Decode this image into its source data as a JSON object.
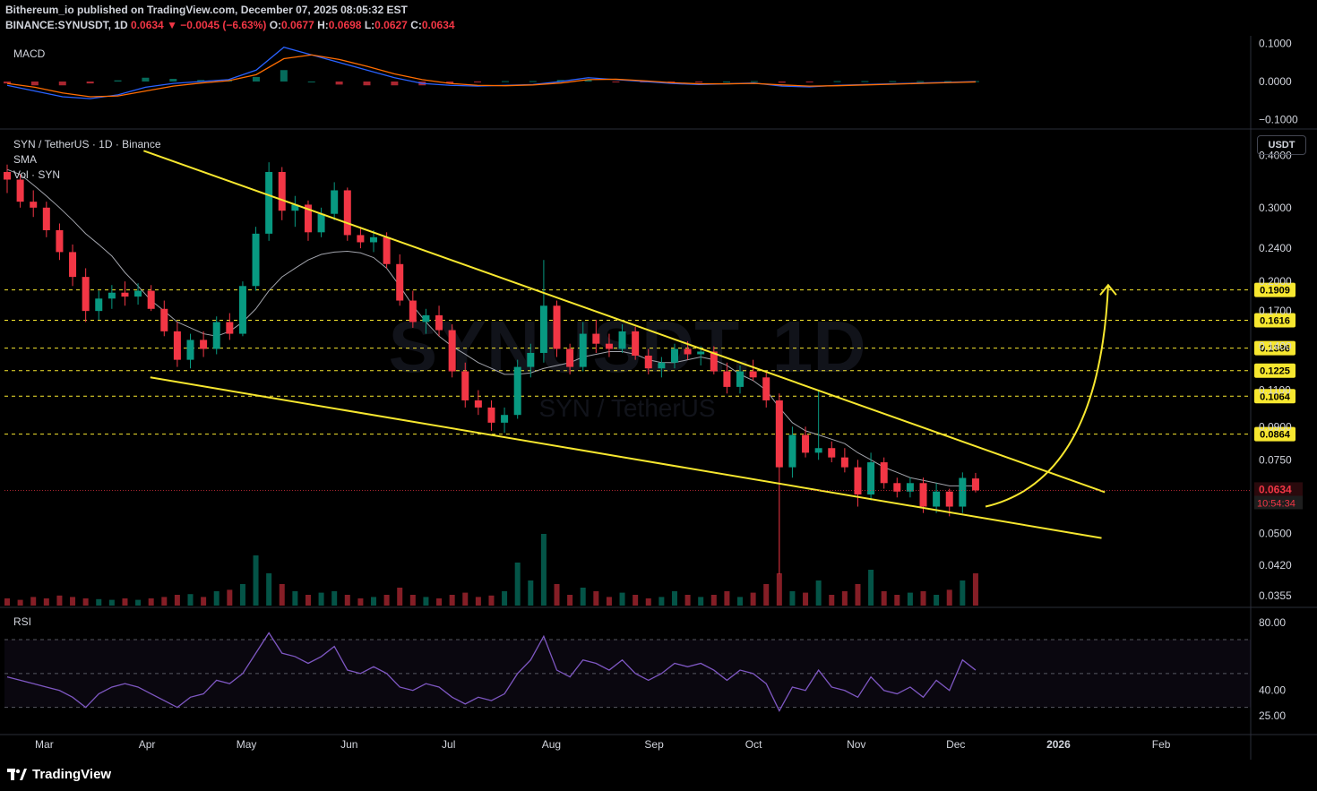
{
  "header": {
    "published_line": "Bithereum_io published on TradingView.com, December 07, 2025 08:05:32 EST",
    "symbol": "BINANCE:SYNUSDT, 1D",
    "last": "0.0634",
    "change": "▼ −0.0045 (−6.63%)",
    "open_label": "O:",
    "open": "0.0677",
    "high_label": "H:",
    "high": "0.0698",
    "low_label": "L:",
    "low": "0.0627",
    "close_label": "C:",
    "close": "0.0634"
  },
  "panes": {
    "macd_label": "MACD",
    "main_title": "SYN / TetherUS · 1D · Binance",
    "sma_label": "SMA",
    "vol_label": "Vol · SYN",
    "rsi_label": "RSI",
    "watermark_main": "SYNUSDT, 1D",
    "watermark_sub": "SYN / TetherUS"
  },
  "price_axis": {
    "currency": "USDT",
    "macd_ticks": [
      "0.1000",
      "0.0000",
      "−0.1000"
    ],
    "main_ticks": [
      "0.4000",
      "0.3000",
      "0.2400",
      "0.2000",
      "0.1700",
      "0.1400",
      "0.1100",
      "0.0900",
      "0.0750",
      "0.0500",
      "0.0420",
      "0.0355"
    ],
    "rsi_ticks": [
      "80.00",
      "40.00",
      "25.00"
    ],
    "current_price_label": "0.0634",
    "countdown": "10:54:34"
  },
  "time_axis": {
    "labels": [
      "Mar",
      "Apr",
      "May",
      "Jun",
      "Jul",
      "Aug",
      "Sep",
      "Oct",
      "Nov",
      "Dec",
      "2026",
      "Feb"
    ]
  },
  "colors": {
    "background": "#000000",
    "up": "#089981",
    "down": "#f23645",
    "sma": "#b2b5be",
    "trendline": "#f7e72f",
    "level": "#f7e72f",
    "rsi": "#7e57c2",
    "macd_line": "#2962ff",
    "signal_line": "#ff6d00",
    "grid": "#1a1d26"
  },
  "footer": {
    "brand": "TradingView"
  },
  "chart_data": {
    "type": "candlestick",
    "pair": "SYN / TetherUS",
    "timeframe": "1D",
    "exchange": "Binance",
    "y_scale": "log",
    "ylim": [
      0.0335,
      0.46
    ],
    "x_range": [
      "2025-02-17",
      "2026-02-28"
    ],
    "last_candle_date": "2025-12-07",
    "ohlc": [
      {
        "o": 0.365,
        "h": 0.38,
        "l": 0.325,
        "c": 0.35
      },
      {
        "o": 0.35,
        "h": 0.36,
        "l": 0.3,
        "c": 0.31
      },
      {
        "o": 0.31,
        "h": 0.33,
        "l": 0.285,
        "c": 0.3
      },
      {
        "o": 0.3,
        "h": 0.31,
        "l": 0.255,
        "c": 0.265
      },
      {
        "o": 0.265,
        "h": 0.275,
        "l": 0.225,
        "c": 0.235
      },
      {
        "o": 0.235,
        "h": 0.245,
        "l": 0.195,
        "c": 0.205
      },
      {
        "o": 0.205,
        "h": 0.215,
        "l": 0.16,
        "c": 0.17
      },
      {
        "o": 0.17,
        "h": 0.19,
        "l": 0.162,
        "c": 0.182
      },
      {
        "o": 0.182,
        "h": 0.196,
        "l": 0.172,
        "c": 0.188
      },
      {
        "o": 0.188,
        "h": 0.2,
        "l": 0.175,
        "c": 0.184
      },
      {
        "o": 0.184,
        "h": 0.198,
        "l": 0.176,
        "c": 0.19
      },
      {
        "o": 0.19,
        "h": 0.196,
        "l": 0.17,
        "c": 0.172
      },
      {
        "o": 0.172,
        "h": 0.18,
        "l": 0.148,
        "c": 0.152
      },
      {
        "o": 0.152,
        "h": 0.16,
        "l": 0.125,
        "c": 0.13
      },
      {
        "o": 0.13,
        "h": 0.15,
        "l": 0.124,
        "c": 0.145
      },
      {
        "o": 0.145,
        "h": 0.152,
        "l": 0.132,
        "c": 0.138
      },
      {
        "o": 0.138,
        "h": 0.165,
        "l": 0.134,
        "c": 0.16
      },
      {
        "o": 0.16,
        "h": 0.168,
        "l": 0.145,
        "c": 0.15
      },
      {
        "o": 0.15,
        "h": 0.2,
        "l": 0.148,
        "c": 0.195
      },
      {
        "o": 0.195,
        "h": 0.27,
        "l": 0.19,
        "c": 0.26
      },
      {
        "o": 0.26,
        "h": 0.385,
        "l": 0.25,
        "c": 0.365
      },
      {
        "o": 0.365,
        "h": 0.375,
        "l": 0.28,
        "c": 0.295
      },
      {
        "o": 0.295,
        "h": 0.32,
        "l": 0.27,
        "c": 0.305
      },
      {
        "o": 0.305,
        "h": 0.312,
        "l": 0.25,
        "c": 0.262
      },
      {
        "o": 0.262,
        "h": 0.3,
        "l": 0.255,
        "c": 0.29
      },
      {
        "o": 0.29,
        "h": 0.345,
        "l": 0.28,
        "c": 0.33
      },
      {
        "o": 0.33,
        "h": 0.335,
        "l": 0.25,
        "c": 0.258
      },
      {
        "o": 0.258,
        "h": 0.27,
        "l": 0.24,
        "c": 0.248
      },
      {
        "o": 0.248,
        "h": 0.265,
        "l": 0.235,
        "c": 0.255
      },
      {
        "o": 0.255,
        "h": 0.262,
        "l": 0.215,
        "c": 0.22
      },
      {
        "o": 0.22,
        "h": 0.232,
        "l": 0.175,
        "c": 0.18
      },
      {
        "o": 0.18,
        "h": 0.19,
        "l": 0.155,
        "c": 0.16
      },
      {
        "o": 0.16,
        "h": 0.172,
        "l": 0.15,
        "c": 0.166
      },
      {
        "o": 0.166,
        "h": 0.175,
        "l": 0.148,
        "c": 0.153
      },
      {
        "o": 0.153,
        "h": 0.158,
        "l": 0.118,
        "c": 0.122
      },
      {
        "o": 0.122,
        "h": 0.128,
        "l": 0.1,
        "c": 0.104
      },
      {
        "o": 0.104,
        "h": 0.11,
        "l": 0.096,
        "c": 0.1
      },
      {
        "o": 0.1,
        "h": 0.104,
        "l": 0.088,
        "c": 0.092
      },
      {
        "o": 0.092,
        "h": 0.1,
        "l": 0.087,
        "c": 0.096
      },
      {
        "o": 0.096,
        "h": 0.13,
        "l": 0.094,
        "c": 0.125
      },
      {
        "o": 0.125,
        "h": 0.142,
        "l": 0.118,
        "c": 0.135
      },
      {
        "o": 0.135,
        "h": 0.225,
        "l": 0.128,
        "c": 0.175
      },
      {
        "o": 0.175,
        "h": 0.18,
        "l": 0.132,
        "c": 0.138
      },
      {
        "o": 0.138,
        "h": 0.142,
        "l": 0.12,
        "c": 0.125
      },
      {
        "o": 0.125,
        "h": 0.16,
        "l": 0.122,
        "c": 0.15
      },
      {
        "o": 0.15,
        "h": 0.162,
        "l": 0.135,
        "c": 0.142
      },
      {
        "o": 0.142,
        "h": 0.15,
        "l": 0.132,
        "c": 0.138
      },
      {
        "o": 0.138,
        "h": 0.158,
        "l": 0.135,
        "c": 0.152
      },
      {
        "o": 0.152,
        "h": 0.156,
        "l": 0.13,
        "c": 0.133
      },
      {
        "o": 0.133,
        "h": 0.138,
        "l": 0.12,
        "c": 0.124
      },
      {
        "o": 0.124,
        "h": 0.132,
        "l": 0.118,
        "c": 0.128
      },
      {
        "o": 0.128,
        "h": 0.142,
        "l": 0.124,
        "c": 0.138
      },
      {
        "o": 0.138,
        "h": 0.144,
        "l": 0.13,
        "c": 0.134
      },
      {
        "o": 0.134,
        "h": 0.14,
        "l": 0.126,
        "c": 0.136
      },
      {
        "o": 0.136,
        "h": 0.14,
        "l": 0.12,
        "c": 0.122
      },
      {
        "o": 0.122,
        "h": 0.128,
        "l": 0.108,
        "c": 0.112
      },
      {
        "o": 0.112,
        "h": 0.126,
        "l": 0.108,
        "c": 0.122
      },
      {
        "o": 0.122,
        "h": 0.13,
        "l": 0.116,
        "c": 0.118
      },
      {
        "o": 0.118,
        "h": 0.122,
        "l": 0.1,
        "c": 0.104
      },
      {
        "o": 0.104,
        "h": 0.108,
        "l": 0.04,
        "c": 0.072
      },
      {
        "o": 0.072,
        "h": 0.09,
        "l": 0.068,
        "c": 0.086
      },
      {
        "o": 0.086,
        "h": 0.09,
        "l": 0.076,
        "c": 0.078
      },
      {
        "o": 0.078,
        "h": 0.11,
        "l": 0.075,
        "c": 0.08
      },
      {
        "o": 0.08,
        "h": 0.083,
        "l": 0.074,
        "c": 0.076
      },
      {
        "o": 0.076,
        "h": 0.08,
        "l": 0.07,
        "c": 0.072
      },
      {
        "o": 0.072,
        "h": 0.075,
        "l": 0.058,
        "c": 0.062
      },
      {
        "o": 0.062,
        "h": 0.078,
        "l": 0.06,
        "c": 0.074
      },
      {
        "o": 0.074,
        "h": 0.076,
        "l": 0.064,
        "c": 0.066
      },
      {
        "o": 0.066,
        "h": 0.068,
        "l": 0.061,
        "c": 0.063
      },
      {
        "o": 0.063,
        "h": 0.068,
        "l": 0.061,
        "c": 0.066
      },
      {
        "o": 0.066,
        "h": 0.068,
        "l": 0.056,
        "c": 0.058
      },
      {
        "o": 0.058,
        "h": 0.066,
        "l": 0.056,
        "c": 0.063
      },
      {
        "o": 0.063,
        "h": 0.064,
        "l": 0.055,
        "c": 0.058
      },
      {
        "o": 0.058,
        "h": 0.07,
        "l": 0.056,
        "c": 0.0679
      },
      {
        "o": 0.0677,
        "h": 0.0698,
        "l": 0.0627,
        "c": 0.0634
      }
    ],
    "sma": [
      0.37,
      0.36,
      0.34,
      0.32,
      0.3,
      0.28,
      0.26,
      0.245,
      0.23,
      0.21,
      0.195,
      0.18,
      0.17,
      0.16,
      0.155,
      0.15,
      0.148,
      0.152,
      0.16,
      0.172,
      0.19,
      0.205,
      0.215,
      0.225,
      0.232,
      0.235,
      0.236,
      0.234,
      0.228,
      0.215,
      0.195,
      0.175,
      0.16,
      0.148,
      0.14,
      0.134,
      0.128,
      0.124,
      0.12,
      0.12,
      0.121,
      0.124,
      0.126,
      0.128,
      0.132,
      0.134,
      0.136,
      0.136,
      0.134,
      0.13,
      0.128,
      0.128,
      0.13,
      0.132,
      0.13,
      0.126,
      0.12,
      0.116,
      0.11,
      0.1,
      0.092,
      0.088,
      0.086,
      0.084,
      0.082,
      0.078,
      0.075,
      0.072,
      0.07,
      0.068,
      0.067,
      0.066,
      0.065,
      0.065,
      0.065
    ],
    "levels": [
      0.1909,
      0.1616,
      0.1386,
      0.1225,
      0.1064,
      0.0864
    ],
    "volume_relative": [
      0.1,
      0.08,
      0.12,
      0.1,
      0.14,
      0.12,
      0.1,
      0.09,
      0.08,
      0.1,
      0.08,
      0.1,
      0.12,
      0.15,
      0.16,
      0.12,
      0.2,
      0.22,
      0.3,
      0.7,
      0.45,
      0.3,
      0.2,
      0.15,
      0.18,
      0.2,
      0.15,
      0.1,
      0.12,
      0.15,
      0.25,
      0.15,
      0.12,
      0.1,
      0.15,
      0.18,
      0.12,
      0.14,
      0.2,
      0.6,
      0.35,
      1.0,
      0.3,
      0.15,
      0.25,
      0.2,
      0.12,
      0.18,
      0.15,
      0.1,
      0.12,
      0.2,
      0.15,
      0.12,
      0.15,
      0.2,
      0.12,
      0.18,
      0.3,
      0.45,
      0.2,
      0.18,
      0.35,
      0.15,
      0.2,
      0.3,
      0.5,
      0.2,
      0.15,
      0.18,
      0.2,
      0.15,
      0.22,
      0.35,
      0.45
    ],
    "rsi": [
      48,
      46,
      44,
      42,
      40,
      36,
      30,
      38,
      42,
      44,
      42,
      38,
      34,
      30,
      36,
      38,
      46,
      44,
      50,
      62,
      74,
      62,
      60,
      56,
      60,
      66,
      52,
      50,
      54,
      50,
      42,
      40,
      44,
      42,
      36,
      32,
      36,
      34,
      38,
      50,
      58,
      72,
      52,
      48,
      58,
      56,
      52,
      58,
      50,
      46,
      50,
      56,
      54,
      56,
      52,
      46,
      52,
      50,
      44,
      28,
      42,
      40,
      52,
      42,
      40,
      36,
      48,
      40,
      38,
      42,
      36,
      46,
      40,
      58,
      52
    ],
    "macd": [
      -0.01,
      -0.025,
      -0.04,
      -0.045,
      -0.035,
      -0.015,
      -0.005,
      0.0,
      0.005,
      0.03,
      0.09,
      0.07,
      0.05,
      0.03,
      0.01,
      -0.005,
      -0.01,
      -0.012,
      -0.01,
      -0.008,
      0.0,
      0.01,
      0.005,
      0.0,
      -0.005,
      -0.008,
      -0.006,
      -0.004,
      -0.012,
      -0.014,
      -0.01,
      -0.008,
      -0.006,
      -0.004,
      -0.002,
      0.0
    ],
    "macd_signal": [
      -0.005,
      -0.015,
      -0.03,
      -0.04,
      -0.038,
      -0.025,
      -0.012,
      -0.004,
      0.002,
      0.018,
      0.06,
      0.07,
      0.058,
      0.04,
      0.02,
      0.005,
      -0.005,
      -0.01,
      -0.011,
      -0.009,
      -0.004,
      0.005,
      0.006,
      0.002,
      -0.003,
      -0.006,
      -0.006,
      -0.005,
      -0.009,
      -0.012,
      -0.011,
      -0.009,
      -0.007,
      -0.005,
      -0.003,
      -0.001
    ],
    "trendlines": [
      {
        "name": "upper",
        "from": {
          "date": "2025-03-31",
          "price": 0.41
        },
        "to": {
          "date": "2026-01-15",
          "price": 0.0628
        }
      },
      {
        "name": "lower",
        "from": {
          "date": "2025-04-02",
          "price": 0.118
        },
        "to": {
          "date": "2026-01-14",
          "price": 0.0488
        }
      }
    ],
    "projection_arrow": {
      "from": {
        "date": "2025-12-10",
        "price": 0.058
      },
      "to": {
        "date": "2026-01-16",
        "price": 0.196
      }
    }
  }
}
